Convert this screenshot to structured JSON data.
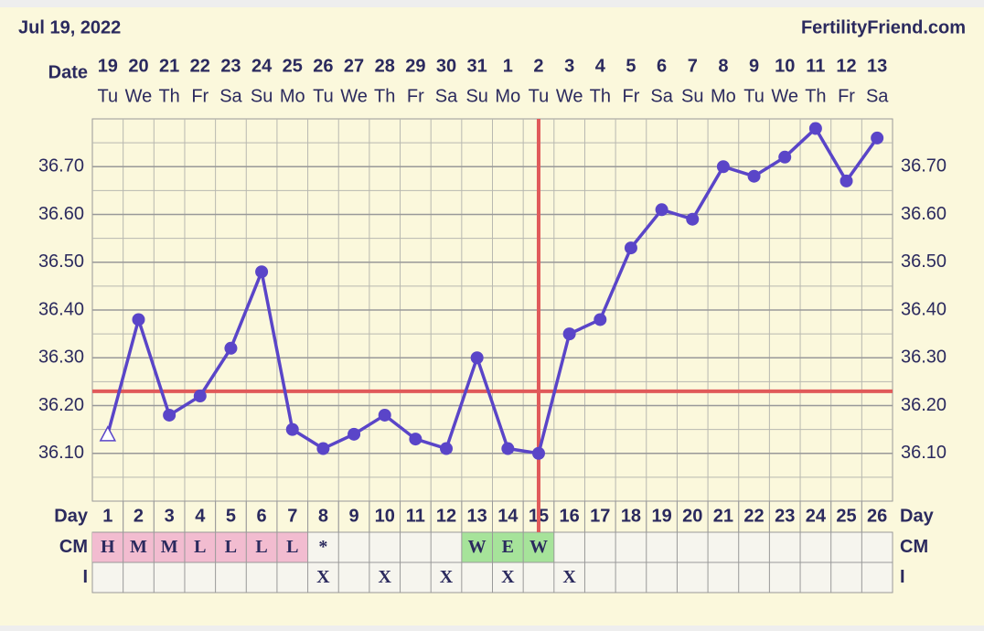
{
  "header": {
    "date": "Jul 19, 2022",
    "brand": "FertilityFriend.com"
  },
  "chart_data": {
    "type": "line",
    "row_labels": {
      "date": "Date",
      "day": "Day",
      "cm": "CM",
      "i": "I"
    },
    "x": [
      19,
      20,
      21,
      22,
      23,
      24,
      25,
      26,
      27,
      28,
      29,
      30,
      31,
      1,
      2,
      3,
      4,
      5,
      6,
      7,
      8,
      9,
      10,
      11,
      12,
      13
    ],
    "weekdays": [
      "Tu",
      "We",
      "Th",
      "Fr",
      "Sa",
      "Su",
      "Mo",
      "Tu",
      "We",
      "Th",
      "Fr",
      "Sa",
      "Su",
      "Mo",
      "Tu",
      "We",
      "Th",
      "Fr",
      "Sa",
      "Su",
      "Mo",
      "Tu",
      "We",
      "Th",
      "Fr",
      "Sa"
    ],
    "days": [
      1,
      2,
      3,
      4,
      5,
      6,
      7,
      8,
      9,
      10,
      11,
      12,
      13,
      14,
      15,
      16,
      17,
      18,
      19,
      20,
      21,
      22,
      23,
      24,
      25,
      26
    ],
    "values": [
      36.14,
      36.38,
      36.18,
      36.22,
      36.32,
      36.48,
      36.15,
      36.11,
      36.14,
      36.18,
      36.13,
      36.11,
      36.3,
      36.11,
      36.1,
      36.35,
      36.38,
      36.53,
      36.61,
      36.59,
      36.7,
      36.68,
      36.72,
      36.78,
      36.67,
      36.76
    ],
    "markers": [
      "triangle",
      "circle",
      "circle",
      "circle",
      "circle",
      "circle",
      "circle",
      "circle",
      "circle",
      "circle",
      "circle",
      "circle",
      "circle",
      "circle",
      "circle",
      "circle",
      "circle",
      "circle",
      "circle",
      "circle",
      "circle",
      "circle",
      "circle",
      "circle",
      "circle",
      "circle"
    ],
    "color": "#5a45c8",
    "cm": [
      "H",
      "M",
      "M",
      "L",
      "L",
      "L",
      "L",
      "*",
      null,
      null,
      null,
      null,
      "W",
      "E",
      "W",
      null,
      null,
      null,
      null,
      null,
      null,
      null,
      null,
      null,
      null,
      null
    ],
    "cm_colors": {
      "H": "#f2bcd0",
      "M": "#f2bcd0",
      "L": "#f2bcd0",
      "W": "#a6e39a",
      "E": "#a6e39a"
    },
    "intercourse": [
      null,
      null,
      null,
      null,
      null,
      null,
      null,
      "X",
      null,
      "X",
      null,
      "X",
      null,
      "X",
      null,
      "X",
      null,
      null,
      null,
      null,
      null,
      null,
      null,
      null,
      null,
      null
    ],
    "coverline": 36.23,
    "ovulation_day": 15,
    "line_marker_color": "#e05a5a",
    "ylim": [
      36.0,
      36.8
    ],
    "yticks": [
      {
        "value": 36.1,
        "label": "36.10"
      },
      {
        "value": 36.2,
        "label": "36.20"
      },
      {
        "value": 36.3,
        "label": "36.30"
      },
      {
        "value": 36.4,
        "label": "36.40"
      },
      {
        "value": 36.5,
        "label": "36.50"
      },
      {
        "value": 36.6,
        "label": "36.60"
      },
      {
        "value": 36.7,
        "label": "36.70"
      }
    ],
    "grid": true
  }
}
